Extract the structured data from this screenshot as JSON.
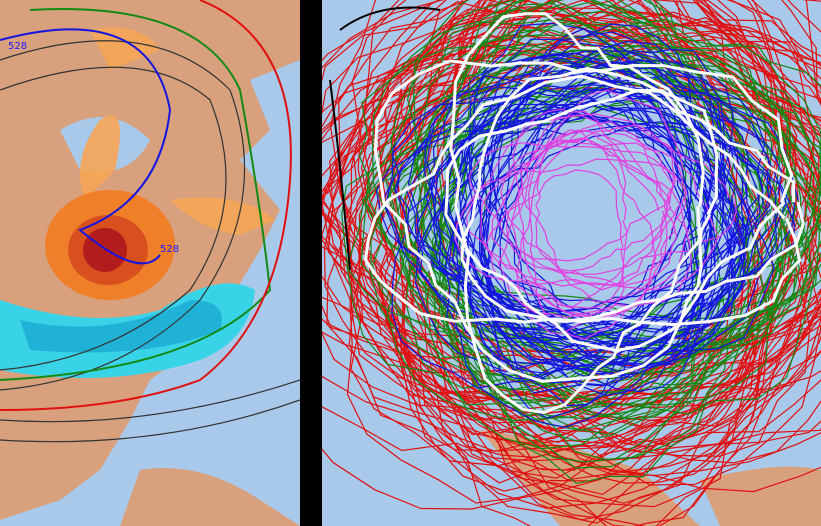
{
  "map": {
    "contour_labels": [
      "528",
      "528"
    ]
  }
}
